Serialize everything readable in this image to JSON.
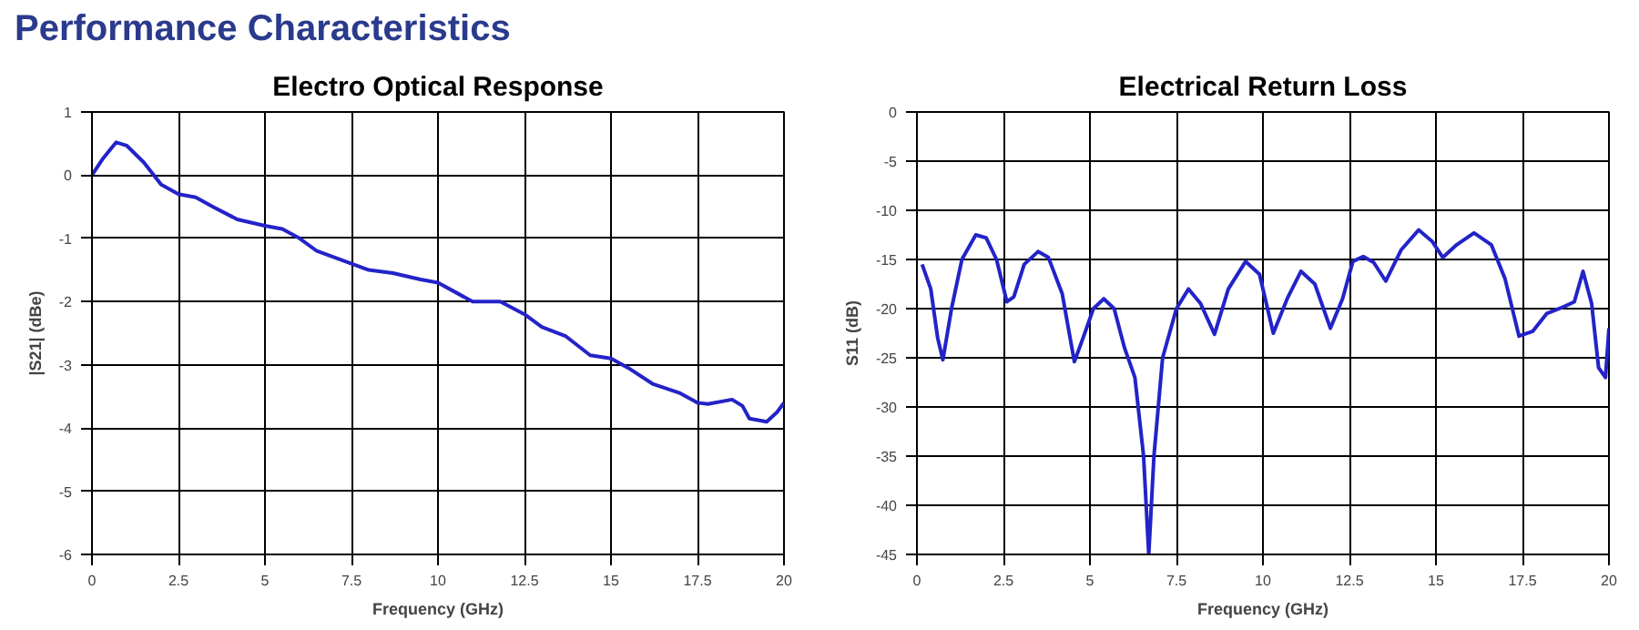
{
  "chart_data": [
    {
      "type": "other",
      "title": "Performance Characteristics"
    },
    {
      "type": "line",
      "title": "Electro Optical Response",
      "xlabel": "Frequency (GHz)",
      "ylabel": "|S21| (dBe)",
      "xlim": [
        0,
        20
      ],
      "ylim": [
        -6,
        1
      ],
      "xticks": [
        0,
        2.5,
        5,
        7.5,
        10,
        12.5,
        15,
        17.5,
        20
      ],
      "yticks": [
        -6,
        -5,
        -4,
        -3,
        -2,
        -1,
        0,
        1
      ],
      "grid": true,
      "line_style": "solid",
      "series": [
        {
          "color": "#2323c8",
          "x": [
            0,
            0.3,
            0.7,
            1,
            1.5,
            2,
            2.5,
            3,
            3.5,
            4.2,
            5,
            5.5,
            6,
            6.5,
            7.5,
            8,
            8.7,
            9.5,
            10,
            10.5,
            11,
            11.8,
            12.5,
            13,
            13.7,
            14.4,
            15,
            15.5,
            16.2,
            17,
            17.5,
            17.8,
            18.5,
            18.8,
            19,
            19.5,
            19.8,
            20
          ],
          "values": [
            0,
            0.25,
            0.52,
            0.47,
            0.2,
            -0.15,
            -0.3,
            -0.35,
            -0.5,
            -0.7,
            -0.8,
            -0.85,
            -1.0,
            -1.2,
            -1.4,
            -1.5,
            -1.55,
            -1.65,
            -1.7,
            -1.85,
            -2.0,
            -2.0,
            -2.2,
            -2.4,
            -2.55,
            -2.85,
            -2.9,
            -3.05,
            -3.3,
            -3.45,
            -3.6,
            -3.62,
            -3.55,
            -3.65,
            -3.85,
            -3.9,
            -3.75,
            -3.6
          ]
        }
      ]
    },
    {
      "type": "line",
      "title": "Electrical Return Loss",
      "xlabel": "Frequency (GHz)",
      "ylabel": "S11 (dB)",
      "xlim": [
        0,
        20
      ],
      "ylim": [
        -45,
        0
      ],
      "xticks": [
        0,
        2.5,
        5,
        7.5,
        10,
        12.5,
        15,
        17.5,
        20
      ],
      "yticks": [
        -45,
        -40,
        -35,
        -30,
        -25,
        -20,
        -15,
        -10,
        -5,
        0
      ],
      "grid": true,
      "line_style": "solid",
      "series": [
        {
          "color": "#2323c8",
          "x": [
            0.15,
            0.4,
            0.6,
            0.75,
            1,
            1.3,
            1.7,
            2,
            2.3,
            2.6,
            2.8,
            3.1,
            3.5,
            3.8,
            4.2,
            4.55,
            4.8,
            5.1,
            5.4,
            5.7,
            6,
            6.3,
            6.55,
            6.7,
            6.85,
            7.1,
            7.5,
            7.85,
            8.2,
            8.6,
            9,
            9.5,
            9.9,
            10.3,
            10.7,
            11.1,
            11.5,
            11.95,
            12.3,
            12.6,
            12.9,
            13.2,
            13.55,
            14,
            14.5,
            14.9,
            15.2,
            15.6,
            16.1,
            16.6,
            17,
            17.4,
            17.8,
            18.2,
            18.7,
            19,
            19.25,
            19.5,
            19.7,
            19.9,
            20
          ],
          "values": [
            -15.5,
            -18,
            -23,
            -25.2,
            -20,
            -15,
            -12.5,
            -12.8,
            -15,
            -19.3,
            -18.8,
            -15.5,
            -14.2,
            -14.8,
            -18.5,
            -25.4,
            -23,
            -20,
            -19,
            -20,
            -24,
            -27,
            -35,
            -45,
            -35,
            -25,
            -20,
            -18,
            -19.5,
            -22.6,
            -18,
            -15.2,
            -16.5,
            -22.5,
            -19,
            -16.2,
            -17.5,
            -22,
            -19,
            -15.2,
            -14.7,
            -15.3,
            -17.2,
            -14,
            -12,
            -13.2,
            -14.8,
            -13.5,
            -12.3,
            -13.5,
            -17,
            -22.8,
            -22.3,
            -20.5,
            -19.8,
            -19.3,
            -16.2,
            -19.5,
            -26,
            -27,
            -22
          ]
        }
      ]
    }
  ]
}
